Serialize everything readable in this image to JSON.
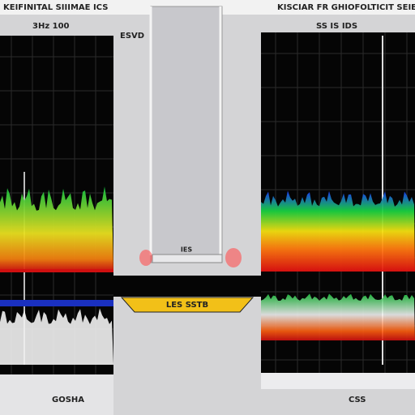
{
  "header": {
    "left_title": "KEIFINITAL SIIIMAE ICS",
    "right_title": "KISCIAR FR GHIOFOLTICIT SEIEDE"
  },
  "left_panel": {
    "label": "3Hz 100",
    "side_label": "ESVD",
    "footer": "GOSHA"
  },
  "center": {
    "rod_label": "IES",
    "banner": "LES SSTB"
  },
  "right_panel": {
    "label": "SS IS IDS",
    "footer": "CSS"
  }
}
